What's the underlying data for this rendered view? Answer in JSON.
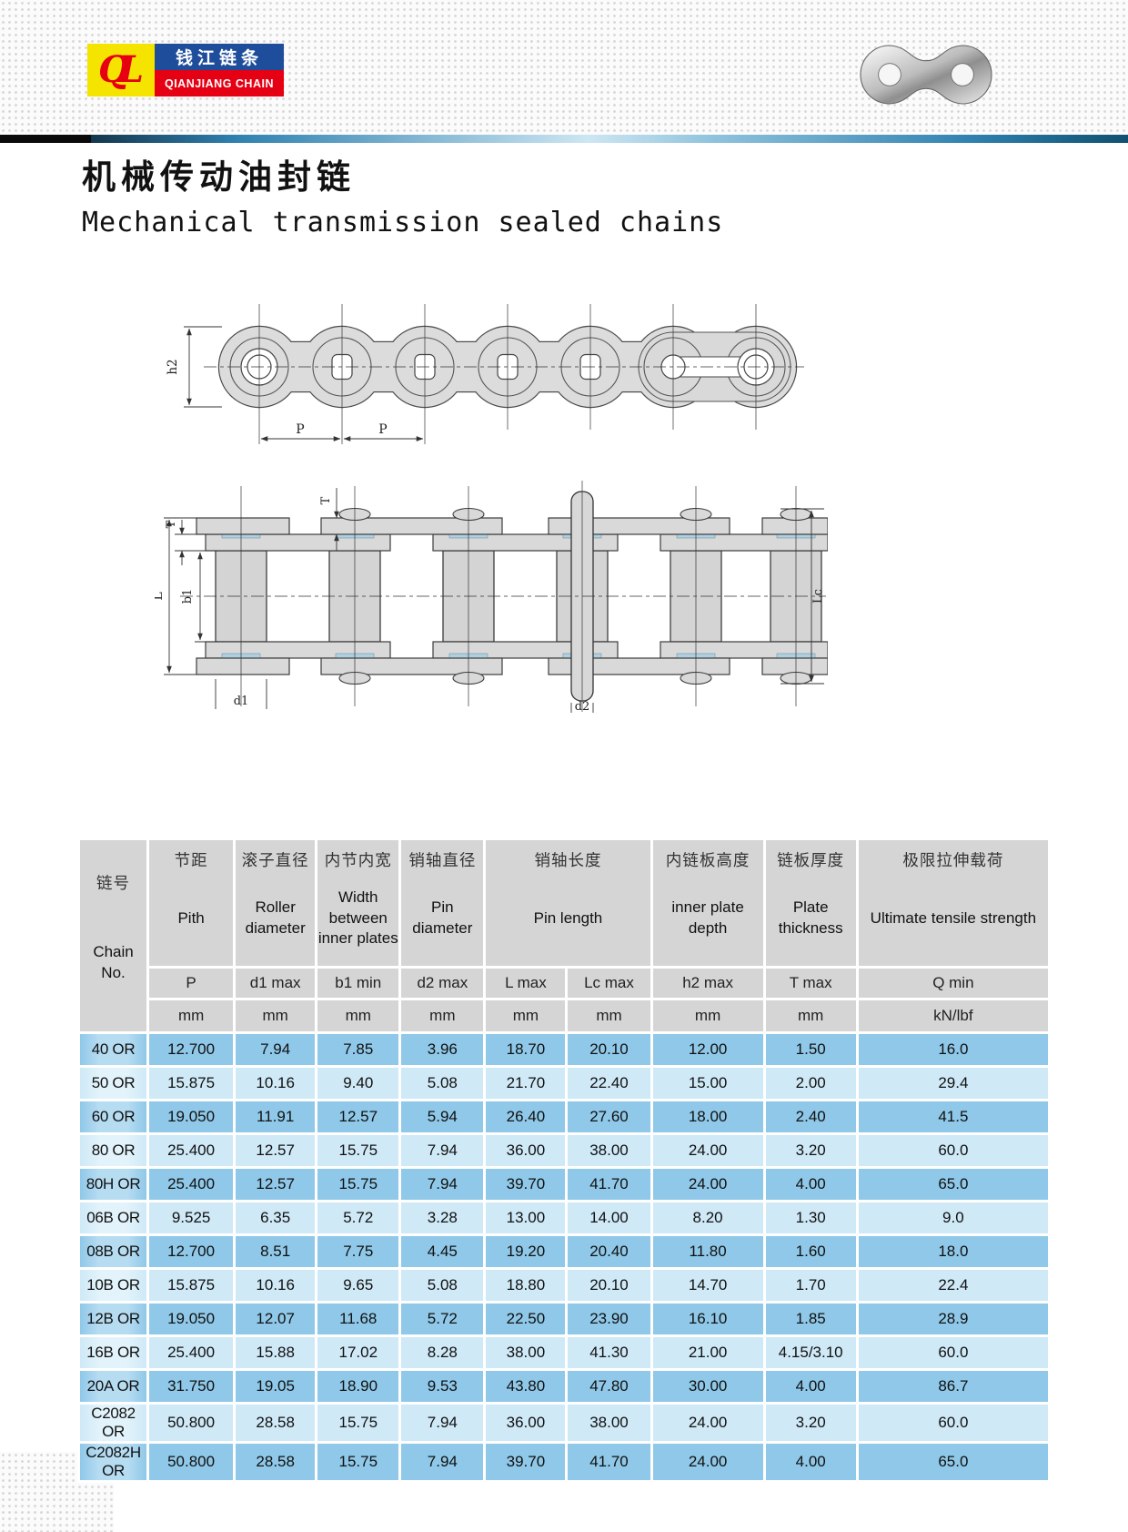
{
  "brand": {
    "monogram": "QL",
    "name_cn": "钱江链条",
    "name_en": "QIANJIANG CHAIN",
    "colors": {
      "yellow": "#f5e400",
      "blue": "#1e4d9b",
      "red": "#e60013"
    }
  },
  "title": {
    "cn": "机械传动油封链",
    "en": "Mechanical transmission sealed chains"
  },
  "drawing_labels": {
    "h2": "h2",
    "p": "P",
    "t": "T",
    "l": "L",
    "b1": "b1",
    "lc": "Lc",
    "d1": "d1",
    "d2": "d2"
  },
  "table": {
    "colors": {
      "header_bg": "#d5d5d5",
      "row_dark": "#8fc8e8",
      "row_light": "#cfe9f7",
      "seal_blue": "#aed0e0"
    },
    "col_chain": {
      "cn": "链号",
      "en": "Chain No."
    },
    "groups": [
      {
        "cn": "节距",
        "en": "Pith",
        "symbol": "P",
        "unit": "mm"
      },
      {
        "cn": "滚子直径",
        "en": "Roller diameter",
        "symbol": "d1 max",
        "unit": "mm"
      },
      {
        "cn": "内节内宽",
        "en": "Width between inner plates",
        "symbol": "b1 min",
        "unit": "mm"
      },
      {
        "cn": "销轴直径",
        "en": "Pin diameter",
        "symbol": "d2 max",
        "unit": "mm"
      },
      {
        "cn": "销轴长度",
        "en": "Pin length",
        "symbols": [
          "L max",
          "Lc max"
        ],
        "units": [
          "mm",
          "mm"
        ]
      },
      {
        "cn": "内链板高度",
        "en": "inner plate depth",
        "symbol": "h2 max",
        "unit": "mm"
      },
      {
        "cn": "链板厚度",
        "en": "Plate thickness",
        "symbol": "T max",
        "unit": "mm"
      },
      {
        "cn": "极限拉伸载荷",
        "en": "Ultimate tensile strength",
        "symbol": "Q min",
        "unit": "kN/lbf"
      }
    ],
    "rows": [
      {
        "chain": "40 OR",
        "values": [
          "12.700",
          "7.94",
          "7.85",
          "3.96",
          "18.70",
          "20.10",
          "12.00",
          "1.50",
          "16.0"
        ]
      },
      {
        "chain": "50 OR",
        "values": [
          "15.875",
          "10.16",
          "9.40",
          "5.08",
          "21.70",
          "22.40",
          "15.00",
          "2.00",
          "29.4"
        ]
      },
      {
        "chain": "60 OR",
        "values": [
          "19.050",
          "11.91",
          "12.57",
          "5.94",
          "26.40",
          "27.60",
          "18.00",
          "2.40",
          "41.5"
        ]
      },
      {
        "chain": "80 OR",
        "values": [
          "25.400",
          "12.57",
          "15.75",
          "7.94",
          "36.00",
          "38.00",
          "24.00",
          "3.20",
          "60.0"
        ]
      },
      {
        "chain": "80H OR",
        "values": [
          "25.400",
          "12.57",
          "15.75",
          "7.94",
          "39.70",
          "41.70",
          "24.00",
          "4.00",
          "65.0"
        ]
      },
      {
        "chain": "06B OR",
        "values": [
          "9.525",
          "6.35",
          "5.72",
          "3.28",
          "13.00",
          "14.00",
          "8.20",
          "1.30",
          "9.0"
        ]
      },
      {
        "chain": "08B OR",
        "values": [
          "12.700",
          "8.51",
          "7.75",
          "4.45",
          "19.20",
          "20.40",
          "11.80",
          "1.60",
          "18.0"
        ]
      },
      {
        "chain": "10B OR",
        "values": [
          "15.875",
          "10.16",
          "9.65",
          "5.08",
          "18.80",
          "20.10",
          "14.70",
          "1.70",
          "22.4"
        ]
      },
      {
        "chain": "12B OR",
        "values": [
          "19.050",
          "12.07",
          "11.68",
          "5.72",
          "22.50",
          "23.90",
          "16.10",
          "1.85",
          "28.9"
        ]
      },
      {
        "chain": "16B OR",
        "values": [
          "25.400",
          "15.88",
          "17.02",
          "8.28",
          "38.00",
          "41.30",
          "21.00",
          "4.15/3.10",
          "60.0"
        ]
      },
      {
        "chain": "20A OR",
        "values": [
          "31.750",
          "19.05",
          "18.90",
          "9.53",
          "43.80",
          "47.80",
          "30.00",
          "4.00",
          "86.7"
        ]
      },
      {
        "chain": "C2082 OR",
        "values": [
          "50.800",
          "28.58",
          "15.75",
          "7.94",
          "36.00",
          "38.00",
          "24.00",
          "3.20",
          "60.0"
        ]
      },
      {
        "chain": "C2082H OR",
        "values": [
          "50.800",
          "28.58",
          "15.75",
          "7.94",
          "39.70",
          "41.70",
          "24.00",
          "4.00",
          "65.0"
        ]
      }
    ]
  }
}
